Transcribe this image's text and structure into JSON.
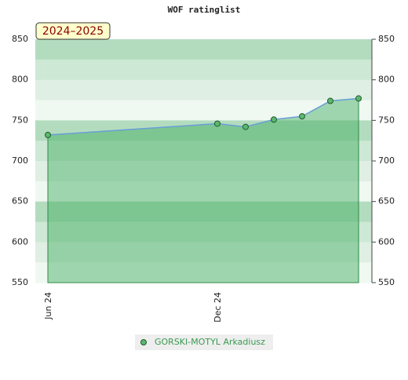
{
  "chart_data": {
    "type": "line",
    "title": "WOF ratinglist",
    "annotation": "2024–2025",
    "x": [
      "2024-06",
      "2024-12",
      "2025-01",
      "2025-02",
      "2025-03",
      "2025-04",
      "2025-05"
    ],
    "xticks": [
      {
        "value": "2024-06",
        "label": "Jun 24"
      },
      {
        "value": "2024-12",
        "label": "Dec 24"
      }
    ],
    "series": [
      {
        "name": "GORSKI-MOTYL Arkadiusz",
        "color": "#6a9fd8",
        "values": [
          732,
          746,
          742,
          751,
          755,
          774,
          777
        ]
      }
    ],
    "ylim": [
      550,
      850
    ],
    "yticks": [
      550,
      600,
      650,
      700,
      750,
      800,
      850
    ]
  }
}
